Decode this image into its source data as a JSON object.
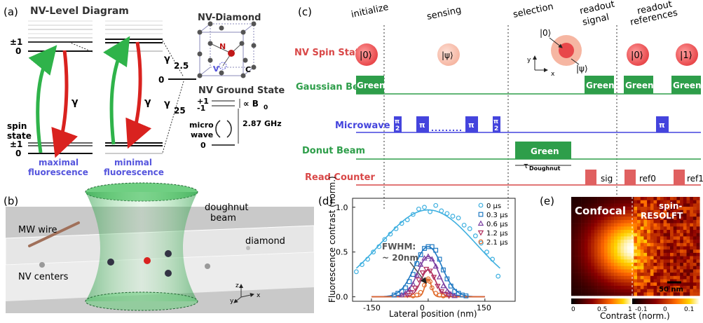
{
  "panel_a": {
    "letter": "(a)",
    "title": "NV-Level Diagram",
    "pm1_top": "±1",
    "zero_top": "0",
    "spin_state": "spin",
    "spin_state2": "state",
    "pm1_bottom": "±1",
    "zero_bottom": "0",
    "gamma1": "γ",
    "gamma2": "γ",
    "gamma_25": "γ/2.5",
    "gamma_25_a": "γ",
    "gamma_25_b": "2.5",
    "gamma_zero": "0",
    "gamma_25b_a": "γ",
    "gamma_25b_b": "25",
    "max_fl_1": "maximal",
    "max_fl_2": "fluorescence",
    "min_fl_1": "minimal",
    "min_fl_2": "fluorescence",
    "diamond_title": "NV-Diamond",
    "n_label": "N",
    "v_label": "V",
    "c_label": "C",
    "ground_title": "NV Ground State",
    "plus1": "+1",
    "minus1": "-1",
    "zero": "0",
    "b0": "∝ B",
    "b0_sub": "0",
    "freq": "2.87 GHz",
    "micro": "micro",
    "wave": "wave"
  },
  "panel_c": {
    "letter": "(c)",
    "phases": [
      "initialize",
      "sensing",
      "selection",
      "readout",
      "signal",
      "readout",
      "references"
    ],
    "rows": [
      "NV Spin State",
      "Gaussian Beam",
      "Microwave",
      "Donut Beam",
      "Read Counter"
    ],
    "ket0": "|0⟩",
    "ketpsi": "|ψ⟩",
    "ket1": "|1⟩",
    "green": "Green",
    "pi": "π",
    "pi2_num": "π",
    "pi2_den": "2",
    "tau": "τ",
    "tau_sub": "Doughnut",
    "sig": "sig",
    "ref0": "ref0",
    "ref1": "ref1",
    "axis_y": "y",
    "axis_x": "x"
  },
  "panel_b": {
    "letter": "(b)",
    "doughnut1": "doughnut",
    "doughnut2": "beam",
    "diamond": "diamond",
    "mw_wire": "MW wire",
    "nv_centers": "NV centers",
    "z": "z",
    "y": "y",
    "x": "x"
  },
  "panel_e": {
    "letter": "(e)",
    "confocal": "Confocal",
    "spin1": "spin-",
    "spin2": "RESOLFT",
    "scale": "50 nm",
    "cbar1_ticks": [
      "0",
      "0.5",
      "1"
    ],
    "cbar2_ticks": [
      "-0.1",
      "0",
      "0.1"
    ],
    "cbar_label": "Contrast (norm.)"
  },
  "chart_data": {
    "type": "scatter",
    "panel_letter": "(d)",
    "xlabel": "Lateral position (nm)",
    "ylabel": "Fluorescence contrast (norm.)",
    "xlim": [
      -200,
      230
    ],
    "ylim": [
      -0.05,
      1.1
    ],
    "xticks": [
      -150,
      0,
      150
    ],
    "yticks": [
      0.0,
      0.5,
      1.0
    ],
    "annotation_1": "FWHM:",
    "annotation_2": "~ 20nm",
    "legend_position": "top-right",
    "series": [
      {
        "name": "0 μs",
        "color": "#3fb0e0",
        "marker": "circle",
        "amp": 0.97,
        "fwhm": 300,
        "offset": 0.0,
        "x": [
          -190,
          -175,
          -160,
          -145,
          -130,
          -115,
          -100,
          -85,
          -70,
          -55,
          -40,
          -25,
          -10,
          5,
          20,
          35,
          50,
          65,
          80,
          95,
          110,
          125,
          140,
          155,
          170,
          185
        ],
        "y": [
          0.28,
          0.36,
          0.42,
          0.5,
          0.56,
          0.64,
          0.7,
          0.76,
          0.82,
          0.86,
          0.92,
          0.98,
          1.0,
          0.95,
          1.02,
          0.96,
          0.93,
          0.9,
          0.88,
          0.8,
          0.76,
          0.68,
          0.6,
          0.5,
          0.42,
          0.23
        ]
      },
      {
        "name": "0.3 μs",
        "color": "#1e78c2",
        "marker": "square",
        "amp": 0.56,
        "fwhm": 85,
        "offset": 0.0,
        "x": [
          -90,
          -80,
          -70,
          -60,
          -50,
          -40,
          -30,
          -20,
          -10,
          0,
          10,
          20,
          30,
          40,
          50,
          60,
          70,
          80,
          90,
          100
        ],
        "y": [
          0.02,
          0.04,
          0.06,
          0.1,
          0.17,
          0.25,
          0.37,
          0.47,
          0.54,
          0.56,
          0.56,
          0.52,
          0.42,
          0.3,
          0.2,
          0.12,
          0.06,
          0.04,
          0.02,
          0.01
        ]
      },
      {
        "name": "0.6 μs",
        "color": "#7a3fa0",
        "marker": "triangle-up",
        "amp": 0.45,
        "fwhm": 65,
        "offset": 0.0,
        "x": [
          -70,
          -60,
          -50,
          -40,
          -30,
          -20,
          -10,
          0,
          10,
          20,
          30,
          40,
          50,
          60,
          70
        ],
        "y": [
          0.02,
          0.04,
          0.08,
          0.14,
          0.24,
          0.36,
          0.43,
          0.45,
          0.42,
          0.34,
          0.22,
          0.12,
          0.06,
          0.03,
          0.01
        ]
      },
      {
        "name": "1.2 μs",
        "color": "#b02d5c",
        "marker": "triangle-down",
        "amp": 0.3,
        "fwhm": 45,
        "offset": 0.0,
        "x": [
          -55,
          -45,
          -35,
          -25,
          -15,
          -5,
          5,
          15,
          25,
          35,
          45,
          55
        ],
        "y": [
          0.02,
          0.05,
          0.1,
          0.19,
          0.27,
          0.31,
          0.29,
          0.22,
          0.12,
          0.06,
          0.03,
          0.01
        ]
      },
      {
        "name": "2.1 μs",
        "color": "#e06a2a",
        "marker": "circle",
        "amp": 0.2,
        "fwhm": 20,
        "offset": 0.0,
        "x": [
          -40,
          -30,
          -20,
          -10,
          -5,
          0,
          5,
          10,
          20,
          30,
          40
        ],
        "y": [
          0.01,
          0.02,
          0.05,
          0.13,
          0.18,
          0.2,
          0.17,
          0.1,
          0.04,
          0.02,
          0.01
        ]
      }
    ]
  }
}
